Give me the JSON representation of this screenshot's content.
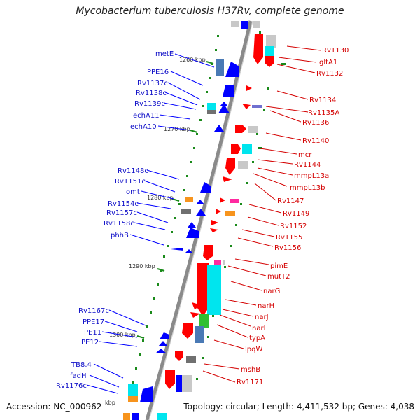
{
  "header": {
    "title": "Mycobacterium tuberculosis H37Rv, complete genome"
  },
  "footer": {
    "accession": "Accession: NC_000962",
    "summary": "Topology: circular; Length: 4,411,532 bp; Genes: 4,038"
  },
  "scale_labels": [
    "1260 kbp",
    "1270 kbp",
    "1280 kbp",
    "1290 kbp",
    "1300 kbp",
    "kbp"
  ],
  "left_genes": [
    "metE",
    "PPE16",
    "Rv1137c",
    "Rv1138c",
    "Rv1139c",
    "echA11",
    "echA10",
    "Rv1148c",
    "Rv1151c",
    "omt",
    "Rv1154c",
    "Rv1157c",
    "Rv1158c",
    "phhB",
    "Rv1167c",
    "PPE17",
    "PE11",
    "PE12",
    "TB8.4",
    "fadH",
    "Rv1176c"
  ],
  "right_genes": [
    "Rv1130",
    "gltA1",
    "Rv1132",
    "Rv1134",
    "Rv1135A",
    "Rv1136",
    "Rv1140",
    "mcr",
    "Rv1144",
    "mmpL13a",
    "mmpL13b",
    "Rv1147",
    "Rv1149",
    "Rv1152",
    "Rv1155",
    "Rv1156",
    "pimE",
    "mutT2",
    "narG",
    "narH",
    "narJ",
    "narI",
    "typA",
    "lpqW",
    "mshB",
    "Rv1171"
  ],
  "colors": {
    "forward": "#ff0000",
    "reverse": "#0000ff",
    "backbone": "#8a8a8a",
    "ticks": "#1a8a1a",
    "rna": "#00e5ee",
    "misc": "#9a9a9a"
  }
}
